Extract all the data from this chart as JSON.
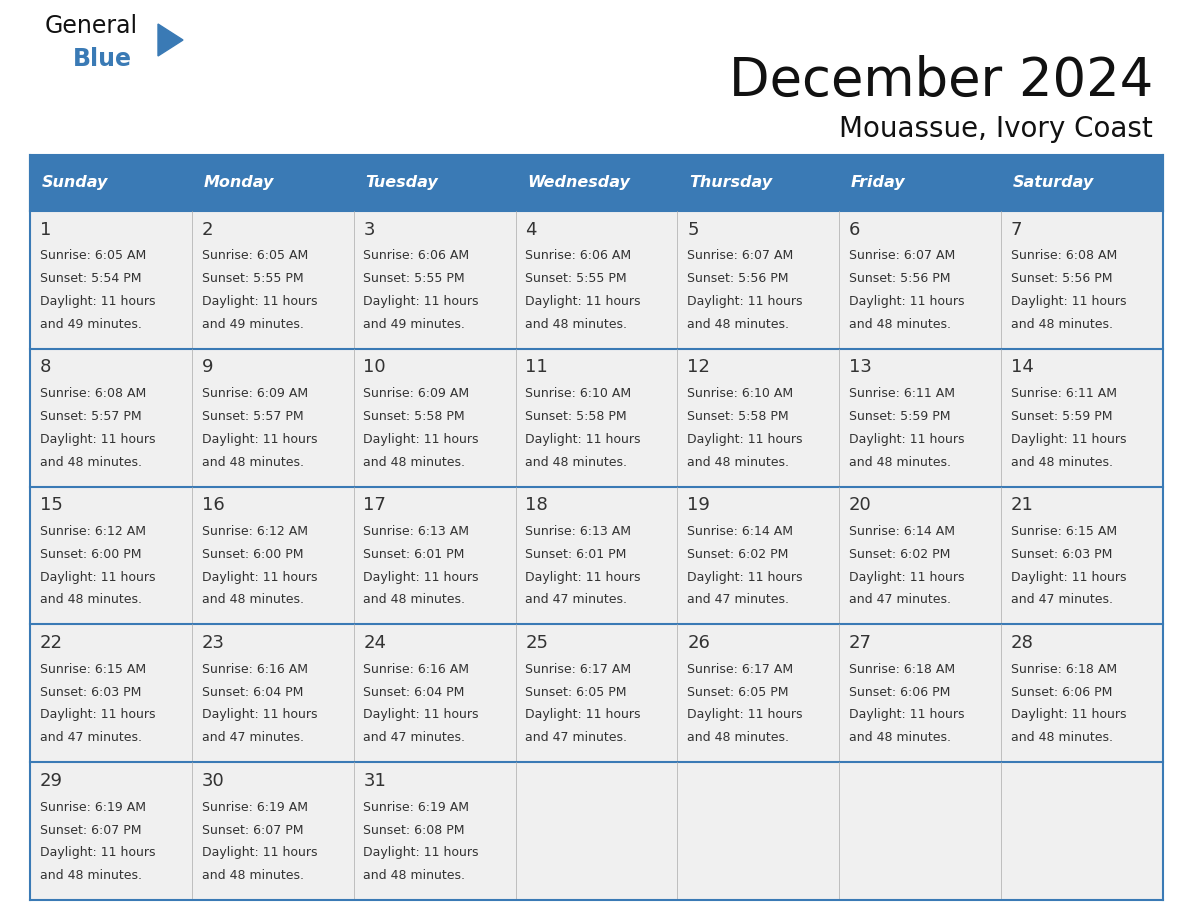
{
  "title": "December 2024",
  "subtitle": "Mouassue, Ivory Coast",
  "header_color": "#3a7ab5",
  "header_text_color": "#ffffff",
  "cell_bg_white": "#ffffff",
  "cell_bg_gray": "#f0f0f0",
  "border_color": "#3a7ab5",
  "grid_line_color": "#aaaaaa",
  "text_color": "#333333",
  "days_of_week": [
    "Sunday",
    "Monday",
    "Tuesday",
    "Wednesday",
    "Thursday",
    "Friday",
    "Saturday"
  ],
  "calendar_data": [
    [
      {
        "day": 1,
        "sunrise": "6:05 AM",
        "sunset": "5:54 PM",
        "daylight_h": "11 hours",
        "daylight_m": "and 49 minutes."
      },
      {
        "day": 2,
        "sunrise": "6:05 AM",
        "sunset": "5:55 PM",
        "daylight_h": "11 hours",
        "daylight_m": "and 49 minutes."
      },
      {
        "day": 3,
        "sunrise": "6:06 AM",
        "sunset": "5:55 PM",
        "daylight_h": "11 hours",
        "daylight_m": "and 49 minutes."
      },
      {
        "day": 4,
        "sunrise": "6:06 AM",
        "sunset": "5:55 PM",
        "daylight_h": "11 hours",
        "daylight_m": "and 48 minutes."
      },
      {
        "day": 5,
        "sunrise": "6:07 AM",
        "sunset": "5:56 PM",
        "daylight_h": "11 hours",
        "daylight_m": "and 48 minutes."
      },
      {
        "day": 6,
        "sunrise": "6:07 AM",
        "sunset": "5:56 PM",
        "daylight_h": "11 hours",
        "daylight_m": "and 48 minutes."
      },
      {
        "day": 7,
        "sunrise": "6:08 AM",
        "sunset": "5:56 PM",
        "daylight_h": "11 hours",
        "daylight_m": "and 48 minutes."
      }
    ],
    [
      {
        "day": 8,
        "sunrise": "6:08 AM",
        "sunset": "5:57 PM",
        "daylight_h": "11 hours",
        "daylight_m": "and 48 minutes."
      },
      {
        "day": 9,
        "sunrise": "6:09 AM",
        "sunset": "5:57 PM",
        "daylight_h": "11 hours",
        "daylight_m": "and 48 minutes."
      },
      {
        "day": 10,
        "sunrise": "6:09 AM",
        "sunset": "5:58 PM",
        "daylight_h": "11 hours",
        "daylight_m": "and 48 minutes."
      },
      {
        "day": 11,
        "sunrise": "6:10 AM",
        "sunset": "5:58 PM",
        "daylight_h": "11 hours",
        "daylight_m": "and 48 minutes."
      },
      {
        "day": 12,
        "sunrise": "6:10 AM",
        "sunset": "5:58 PM",
        "daylight_h": "11 hours",
        "daylight_m": "and 48 minutes."
      },
      {
        "day": 13,
        "sunrise": "6:11 AM",
        "sunset": "5:59 PM",
        "daylight_h": "11 hours",
        "daylight_m": "and 48 minutes."
      },
      {
        "day": 14,
        "sunrise": "6:11 AM",
        "sunset": "5:59 PM",
        "daylight_h": "11 hours",
        "daylight_m": "and 48 minutes."
      }
    ],
    [
      {
        "day": 15,
        "sunrise": "6:12 AM",
        "sunset": "6:00 PM",
        "daylight_h": "11 hours",
        "daylight_m": "and 48 minutes."
      },
      {
        "day": 16,
        "sunrise": "6:12 AM",
        "sunset": "6:00 PM",
        "daylight_h": "11 hours",
        "daylight_m": "and 48 minutes."
      },
      {
        "day": 17,
        "sunrise": "6:13 AM",
        "sunset": "6:01 PM",
        "daylight_h": "11 hours",
        "daylight_m": "and 48 minutes."
      },
      {
        "day": 18,
        "sunrise": "6:13 AM",
        "sunset": "6:01 PM",
        "daylight_h": "11 hours",
        "daylight_m": "and 47 minutes."
      },
      {
        "day": 19,
        "sunrise": "6:14 AM",
        "sunset": "6:02 PM",
        "daylight_h": "11 hours",
        "daylight_m": "and 47 minutes."
      },
      {
        "day": 20,
        "sunrise": "6:14 AM",
        "sunset": "6:02 PM",
        "daylight_h": "11 hours",
        "daylight_m": "and 47 minutes."
      },
      {
        "day": 21,
        "sunrise": "6:15 AM",
        "sunset": "6:03 PM",
        "daylight_h": "11 hours",
        "daylight_m": "and 47 minutes."
      }
    ],
    [
      {
        "day": 22,
        "sunrise": "6:15 AM",
        "sunset": "6:03 PM",
        "daylight_h": "11 hours",
        "daylight_m": "and 47 minutes."
      },
      {
        "day": 23,
        "sunrise": "6:16 AM",
        "sunset": "6:04 PM",
        "daylight_h": "11 hours",
        "daylight_m": "and 47 minutes."
      },
      {
        "day": 24,
        "sunrise": "6:16 AM",
        "sunset": "6:04 PM",
        "daylight_h": "11 hours",
        "daylight_m": "and 47 minutes."
      },
      {
        "day": 25,
        "sunrise": "6:17 AM",
        "sunset": "6:05 PM",
        "daylight_h": "11 hours",
        "daylight_m": "and 47 minutes."
      },
      {
        "day": 26,
        "sunrise": "6:17 AM",
        "sunset": "6:05 PM",
        "daylight_h": "11 hours",
        "daylight_m": "and 48 minutes."
      },
      {
        "day": 27,
        "sunrise": "6:18 AM",
        "sunset": "6:06 PM",
        "daylight_h": "11 hours",
        "daylight_m": "and 48 minutes."
      },
      {
        "day": 28,
        "sunrise": "6:18 AM",
        "sunset": "6:06 PM",
        "daylight_h": "11 hours",
        "daylight_m": "and 48 minutes."
      }
    ],
    [
      {
        "day": 29,
        "sunrise": "6:19 AM",
        "sunset": "6:07 PM",
        "daylight_h": "11 hours",
        "daylight_m": "and 48 minutes."
      },
      {
        "day": 30,
        "sunrise": "6:19 AM",
        "sunset": "6:07 PM",
        "daylight_h": "11 hours",
        "daylight_m": "and 48 minutes."
      },
      {
        "day": 31,
        "sunrise": "6:19 AM",
        "sunset": "6:08 PM",
        "daylight_h": "11 hours",
        "daylight_m": "and 48 minutes."
      },
      null,
      null,
      null,
      null
    ]
  ],
  "logo_triangle_color": "#3a7ab5",
  "figsize": [
    11.88,
    9.18
  ],
  "dpi": 100
}
